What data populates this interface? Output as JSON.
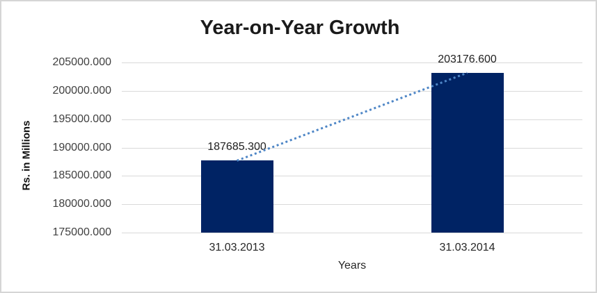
{
  "chart": {
    "title": "Year-on-Year Growth",
    "x_axis_title": "Years",
    "y_axis_title": "Rs. in Millions",
    "colors": {
      "bar": "#002364",
      "trendline": "#4e86c6",
      "gridline": "#d9d9d9",
      "tick_text": "#404040",
      "label_text": "#1f1f1f",
      "title_text": "#1a1a1a",
      "border": "#d5d5d5",
      "background": "#ffffff"
    }
  },
  "chart_data": {
    "type": "bar",
    "title": "Year-on-Year Growth",
    "xlabel": "Years",
    "ylabel": "Rs. in Millions",
    "categories": [
      "31.03.2013",
      "31.03.2014"
    ],
    "values": [
      187685.3,
      203176.6
    ],
    "data_labels": [
      "187685.300",
      "203176.600"
    ],
    "ylim": [
      175000,
      205000
    ],
    "ytick_step": 5000,
    "ytick_labels": [
      "205000.000",
      "200000.000",
      "195000.000",
      "190000.000",
      "185000.000",
      "180000.000",
      "175000.000"
    ],
    "grid": true,
    "legend": "none",
    "bar_color": "#002364",
    "trendline": {
      "style": "dotted",
      "color": "#4e86c6",
      "from_category_index": 0,
      "to_category_index": 1
    }
  }
}
